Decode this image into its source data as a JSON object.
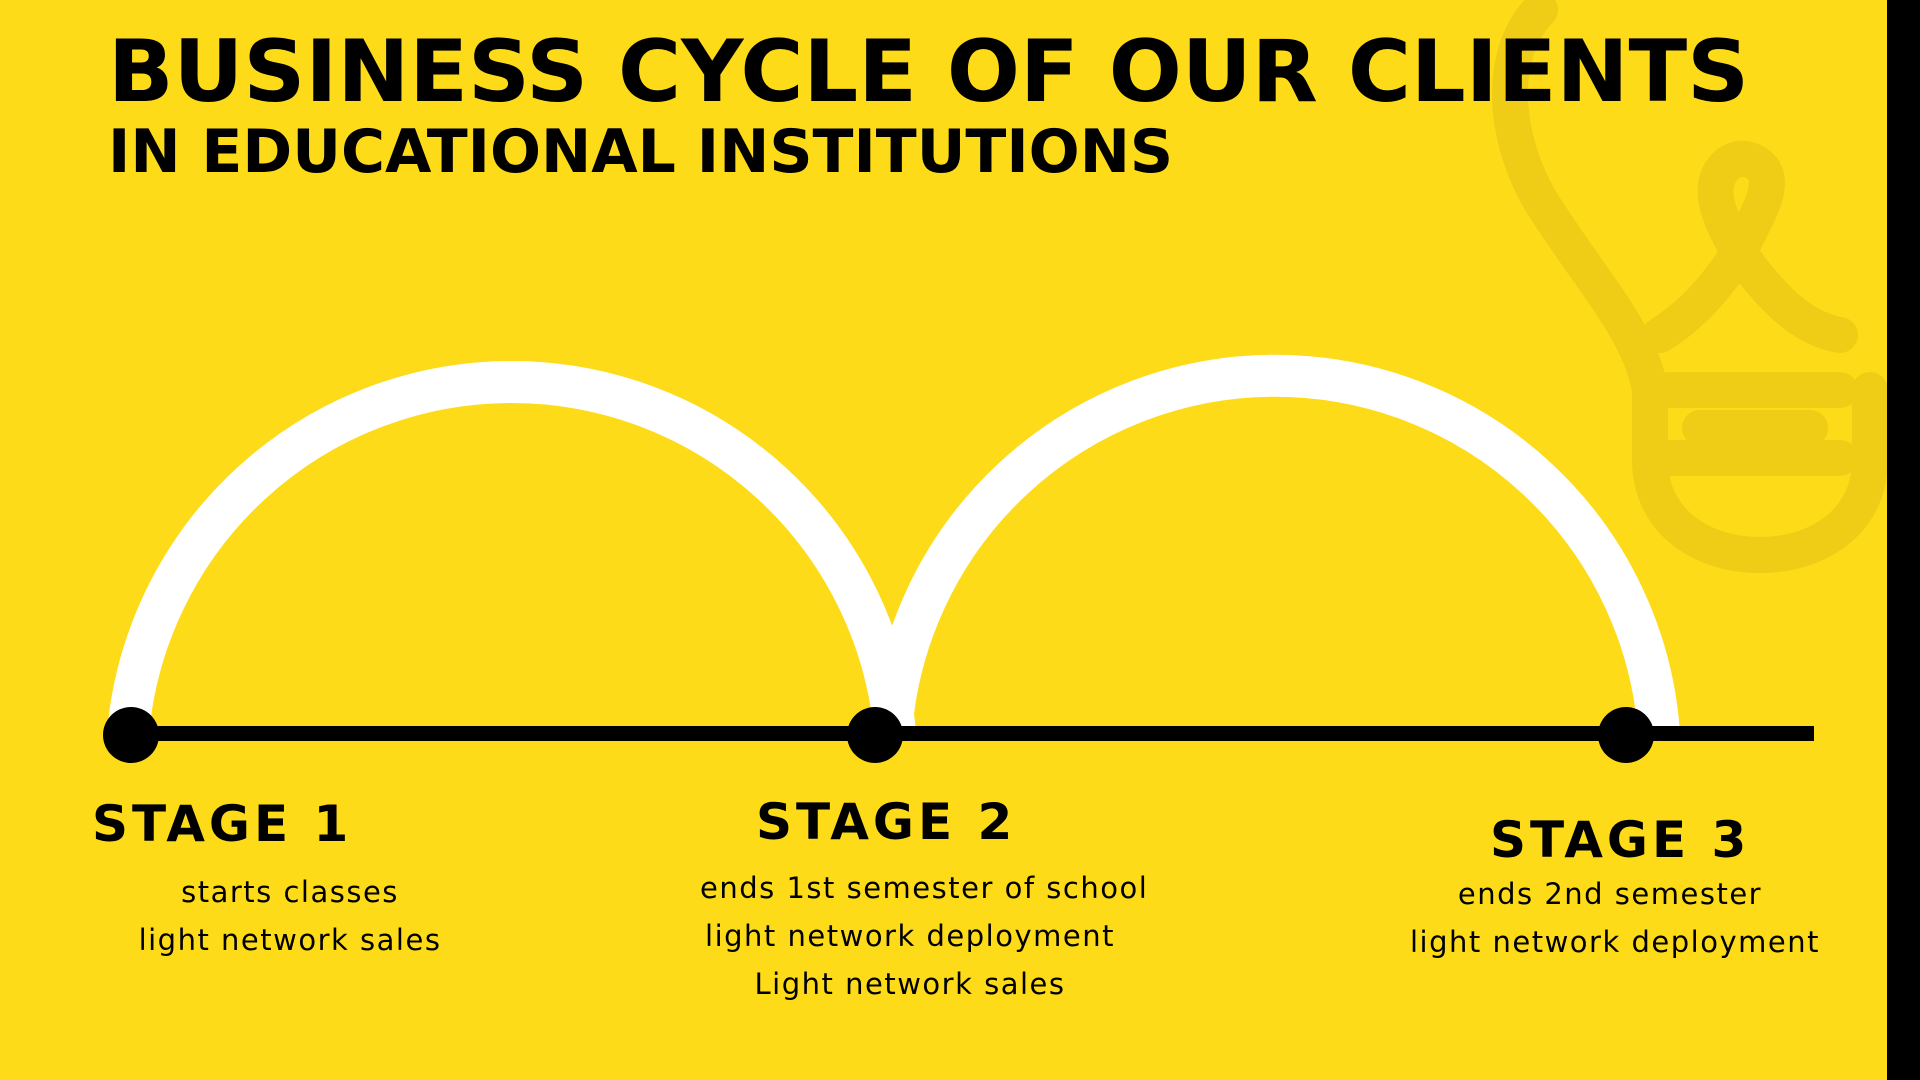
{
  "header": {
    "title": "BUSINESS CYCLE OF OUR CLIENTS",
    "subtitle": "IN EDUCATIONAL INSTITUTIONS"
  },
  "stages": [
    {
      "title": "STAGE 1",
      "lines": [
        "starts classes",
        "light network sales"
      ]
    },
    {
      "title": "STAGE 2",
      "lines": [
        "ends 1st semester of school",
        "light network deployment",
        "Light network sales"
      ]
    },
    {
      "title": "STAGE 3",
      "lines": [
        "ends 2nd semester",
        "light network deployment"
      ]
    }
  ],
  "colors": {
    "background": "#FEDB18",
    "timeline": "#000000",
    "arc": "#FFFFFF",
    "watermark": "#EFCC16",
    "right_bar": "#000000"
  },
  "icons": {
    "watermark": "lightbulb-icon"
  }
}
